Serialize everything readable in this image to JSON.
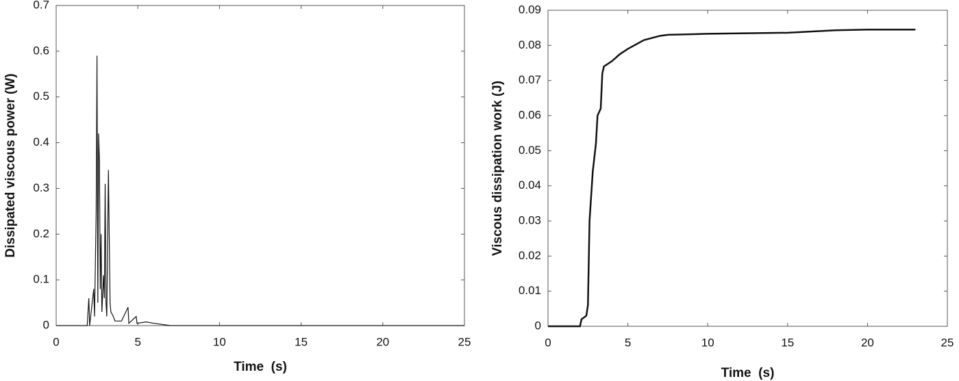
{
  "chart_data": [
    {
      "type": "line",
      "xlabel": "Time  (s)",
      "ylabel": "Dissipated viscous power (W)",
      "xlim": [
        0,
        25
      ],
      "ylim": [
        0,
        0.7
      ],
      "xticks": [
        0,
        5,
        10,
        15,
        20,
        25
      ],
      "yticks": [
        0,
        0.1,
        0.2,
        0.3,
        0.4,
        0.5,
        0.6,
        0.7
      ],
      "series": [
        {
          "color": "#111111",
          "x": [
            0,
            1.9,
            2.0,
            2.05,
            2.3,
            2.35,
            2.45,
            2.5,
            2.55,
            2.6,
            2.65,
            2.7,
            2.75,
            2.8,
            2.9,
            2.95,
            3.0,
            3.05,
            3.1,
            3.2,
            3.3,
            3.35,
            3.5,
            3.6,
            4.0,
            4.4,
            4.45,
            4.6,
            4.9,
            4.95,
            5.5,
            6,
            7,
            7.2,
            25
          ],
          "values": [
            0,
            0,
            0.06,
            0,
            0.08,
            0.02,
            0.25,
            0.59,
            0.05,
            0.42,
            0.36,
            0.08,
            0.2,
            0.03,
            0.11,
            0.06,
            0.31,
            0.05,
            0.02,
            0.34,
            0.05,
            0.03,
            0.02,
            0.01,
            0.01,
            0.04,
            0.005,
            0.01,
            0.02,
            0.005,
            0.008,
            0.005,
            0,
            0,
            0
          ]
        }
      ]
    },
    {
      "type": "line",
      "xlabel": "Time  (s)",
      "ylabel": "Viscous dissipation work (J)",
      "xlim": [
        0,
        25
      ],
      "ylim": [
        0,
        0.09
      ],
      "xticks": [
        0,
        5,
        10,
        15,
        20,
        25
      ],
      "yticks": [
        0,
        0.01,
        0.02,
        0.03,
        0.04,
        0.05,
        0.06,
        0.07,
        0.08,
        0.09
      ],
      "series": [
        {
          "color": "#111111",
          "x": [
            0,
            2.0,
            2.1,
            2.4,
            2.5,
            2.6,
            2.8,
            3.0,
            3.1,
            3.3,
            3.4,
            3.5,
            4.0,
            4.5,
            5,
            6,
            7,
            7.5,
            10,
            15,
            18,
            20,
            23
          ],
          "values": [
            0,
            0,
            0.002,
            0.003,
            0.006,
            0.03,
            0.044,
            0.052,
            0.06,
            0.062,
            0.072,
            0.074,
            0.0755,
            0.0775,
            0.079,
            0.0815,
            0.0827,
            0.083,
            0.0833,
            0.0836,
            0.0843,
            0.0845,
            0.0845
          ]
        }
      ]
    }
  ]
}
